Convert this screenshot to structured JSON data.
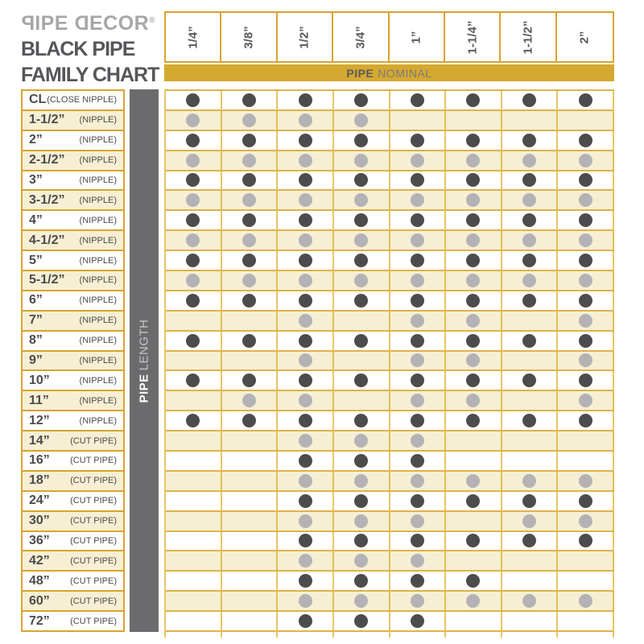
{
  "brand": {
    "logo_p": "P",
    "logo_ipe": "IPE",
    "logo_d": "D",
    "logo_ecor": "ECOR",
    "registered": "®",
    "title_line1": "BLACK PIPE",
    "title_line2": "FAMILY CHART"
  },
  "columns_axis": {
    "label_bold": "PIPE",
    "label_rest": "NOMINAL"
  },
  "rows_axis": {
    "label_bold": "PIPE",
    "label_rest": "LENGTH"
  },
  "colors": {
    "gold": "#d5a92f",
    "cream_row": "#f6efd3",
    "dark_dot": "#4c4c4e",
    "light_dot": "#b4b2b5",
    "axis_bar_gray": "#6b6b6d"
  },
  "chart_data": {
    "type": "table",
    "title": "BLACK PIPE FAMILY CHART",
    "x_axis_label": "PIPE NOMINAL",
    "y_axis_label": "PIPE LENGTH",
    "cell_legend": {
      "D": "dark dot (offered)",
      "L": "light gray dot (offered)",
      "": "not offered"
    },
    "columns": [
      "1/4”",
      "3/8”",
      "1/2”",
      "3/4”",
      "1”",
      "1-1/4”",
      "1-1/2”",
      "2”"
    ],
    "rows": [
      {
        "size": "CL",
        "type": "(CLOSE NIPPLE)",
        "cells": [
          "D",
          "D",
          "D",
          "D",
          "D",
          "D",
          "D",
          "D"
        ]
      },
      {
        "size": "1-1/2”",
        "type": "(NIPPLE)",
        "cells": [
          "L",
          "L",
          "L",
          "L",
          "",
          "",
          "",
          ""
        ]
      },
      {
        "size": "2”",
        "type": "(NIPPLE)",
        "cells": [
          "D",
          "D",
          "D",
          "D",
          "D",
          "D",
          "D",
          "D"
        ]
      },
      {
        "size": "2-1/2”",
        "type": "(NIPPLE)",
        "cells": [
          "L",
          "L",
          "L",
          "L",
          "L",
          "L",
          "L",
          "L"
        ]
      },
      {
        "size": "3”",
        "type": "(NIPPLE)",
        "cells": [
          "D",
          "D",
          "D",
          "D",
          "D",
          "D",
          "D",
          "D"
        ]
      },
      {
        "size": "3-1/2”",
        "type": "(NIPPLE)",
        "cells": [
          "L",
          "L",
          "L",
          "L",
          "L",
          "L",
          "L",
          "L"
        ]
      },
      {
        "size": "4”",
        "type": "(NIPPLE)",
        "cells": [
          "D",
          "D",
          "D",
          "D",
          "D",
          "D",
          "D",
          "D"
        ]
      },
      {
        "size": "4-1/2”",
        "type": "(NIPPLE)",
        "cells": [
          "L",
          "L",
          "L",
          "L",
          "L",
          "L",
          "L",
          "L"
        ]
      },
      {
        "size": "5”",
        "type": "(NIPPLE)",
        "cells": [
          "D",
          "D",
          "D",
          "D",
          "D",
          "D",
          "D",
          "D"
        ]
      },
      {
        "size": "5-1/2”",
        "type": "(NIPPLE)",
        "cells": [
          "L",
          "L",
          "L",
          "L",
          "L",
          "L",
          "L",
          "L"
        ]
      },
      {
        "size": "6”",
        "type": "(NIPPLE)",
        "cells": [
          "D",
          "D",
          "D",
          "D",
          "D",
          "D",
          "D",
          "D"
        ]
      },
      {
        "size": "7”",
        "type": "(NIPPLE)",
        "cells": [
          "",
          "",
          "L",
          "",
          "L",
          "L",
          "",
          "L"
        ]
      },
      {
        "size": "8”",
        "type": "(NIPPLE)",
        "cells": [
          "D",
          "D",
          "D",
          "D",
          "D",
          "D",
          "D",
          "D"
        ]
      },
      {
        "size": "9”",
        "type": "(NIPPLE)",
        "cells": [
          "",
          "",
          "L",
          "",
          "L",
          "L",
          "",
          "L"
        ]
      },
      {
        "size": "10”",
        "type": "(NIPPLE)",
        "cells": [
          "D",
          "D",
          "D",
          "D",
          "D",
          "D",
          "D",
          "D"
        ]
      },
      {
        "size": "11”",
        "type": "(NIPPLE)",
        "cells": [
          "",
          "L",
          "L",
          "",
          "L",
          "L",
          "",
          "L"
        ]
      },
      {
        "size": "12”",
        "type": "(NIPPLE)",
        "cells": [
          "D",
          "D",
          "D",
          "D",
          "D",
          "D",
          "D",
          "D"
        ]
      },
      {
        "size": "14”",
        "type": "(CUT PIPE)",
        "cells": [
          "",
          "",
          "L",
          "L",
          "L",
          "",
          "",
          ""
        ]
      },
      {
        "size": "16”",
        "type": "(CUT PIPE)",
        "cells": [
          "",
          "",
          "D",
          "D",
          "D",
          "",
          "",
          ""
        ]
      },
      {
        "size": "18”",
        "type": "(CUT PIPE)",
        "cells": [
          "",
          "",
          "L",
          "L",
          "L",
          "L",
          "L",
          "L"
        ]
      },
      {
        "size": "24”",
        "type": "(CUT PIPE)",
        "cells": [
          "",
          "",
          "D",
          "D",
          "D",
          "D",
          "D",
          "D"
        ]
      },
      {
        "size": "30”",
        "type": "(CUT PIPE)",
        "cells": [
          "",
          "",
          "L",
          "L",
          "L",
          "",
          "L",
          "L"
        ]
      },
      {
        "size": "36”",
        "type": "(CUT PIPE)",
        "cells": [
          "",
          "",
          "D",
          "D",
          "D",
          "D",
          "D",
          "D"
        ]
      },
      {
        "size": "42”",
        "type": "(CUT PIPE)",
        "cells": [
          "",
          "",
          "L",
          "L",
          "L",
          "",
          "",
          ""
        ]
      },
      {
        "size": "48”",
        "type": "(CUT PIPE)",
        "cells": [
          "",
          "",
          "D",
          "D",
          "D",
          "D",
          "",
          ""
        ]
      },
      {
        "size": "60”",
        "type": "(CUT PIPE)",
        "cells": [
          "",
          "",
          "L",
          "L",
          "L",
          "L",
          "L",
          "L"
        ]
      },
      {
        "size": "72”",
        "type": "(CUT PIPE)",
        "cells": [
          "",
          "",
          "D",
          "D",
          "D",
          "",
          "",
          ""
        ]
      }
    ]
  }
}
